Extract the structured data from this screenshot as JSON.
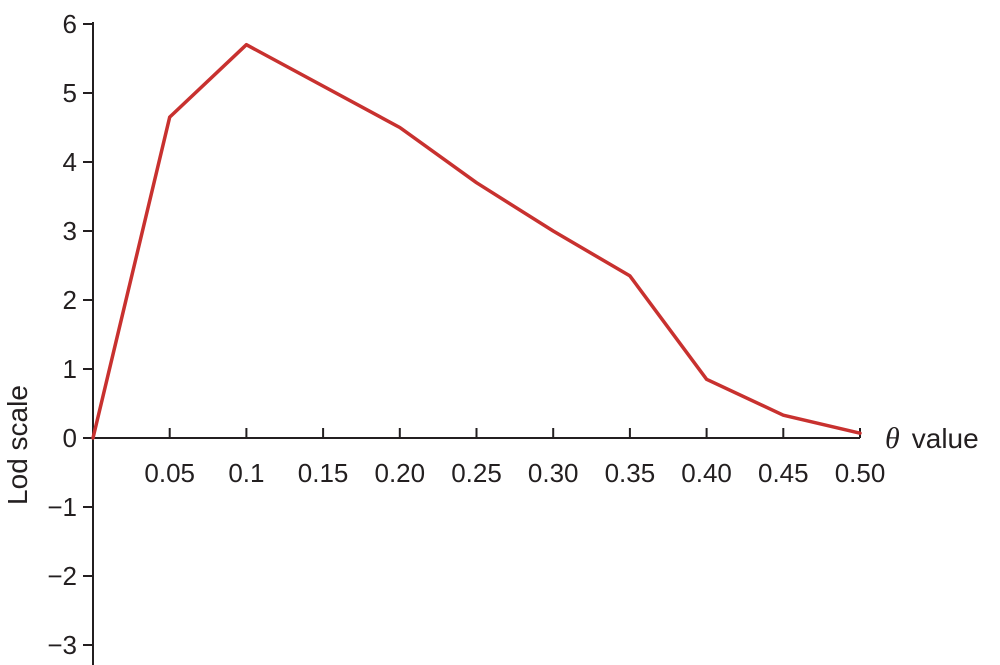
{
  "chart_data": {
    "type": "line",
    "xlabel_symbol": "θ",
    "xlabel": "value",
    "ylabel": "Lod scale",
    "xlim": [
      0,
      0.5
    ],
    "ylim": [
      -3,
      6
    ],
    "x_ticks": [
      0.05,
      0.1,
      0.15,
      0.2,
      0.25,
      0.3,
      0.35,
      0.4,
      0.45,
      0.5
    ],
    "x_tick_labels": [
      "0.05",
      "0.1",
      "0.15",
      "0.20",
      "0.25",
      "0.30",
      "0.35",
      "0.40",
      "0.45",
      "0.50"
    ],
    "y_ticks": [
      -3,
      -2,
      -1,
      0,
      1,
      2,
      3,
      4,
      5,
      6
    ],
    "y_tick_labels": [
      "−3",
      "−2",
      "−1",
      "0",
      "1",
      "2",
      "3",
      "4",
      "5",
      "6"
    ],
    "grid": false,
    "series": [
      {
        "color": "#c8312f",
        "x": [
          0,
          0.05,
          0.1,
          0.2,
          0.25,
          0.3,
          0.35,
          0.4,
          0.45,
          0.5
        ],
        "y": [
          0,
          4.65,
          5.7,
          4.5,
          3.7,
          3.0,
          2.35,
          0.85,
          0.33,
          0.07
        ]
      }
    ]
  }
}
